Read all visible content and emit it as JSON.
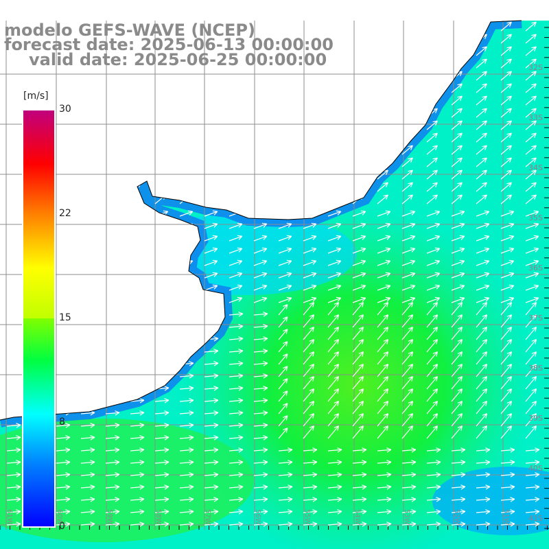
{
  "title": {
    "line1": "modelo GEFS-WAVE (NCEP)",
    "line2": "forecast date: 2025-06-13 00:00:00",
    "line3": "valid date: 2025-06-25 00:00:00"
  },
  "colorbar": {
    "unit": "[m/s]",
    "ticks": [
      "30",
      "22",
      "15",
      "8",
      "0"
    ],
    "colors": [
      "#0000ff",
      "#00a0ff",
      "#00ffff",
      "#00ff40",
      "#40ff00",
      "#ffff00",
      "#ff8000",
      "#ff0000",
      "#c00080"
    ]
  },
  "lat_labels": [
    "32S",
    "33S",
    "34S",
    "35S",
    "36S",
    "37S",
    "38S",
    "39S",
    "40S",
    "41S"
  ],
  "lon_labels": [
    "61W",
    "60W",
    "59W",
    "58W",
    "57W",
    "56W",
    "55W",
    "54W",
    "53W",
    "52W",
    "51W"
  ],
  "colors": {
    "land": "#ffffff",
    "coast": "#000000",
    "grid": "#8c8c8c",
    "arrow": "#ffffff"
  }
}
